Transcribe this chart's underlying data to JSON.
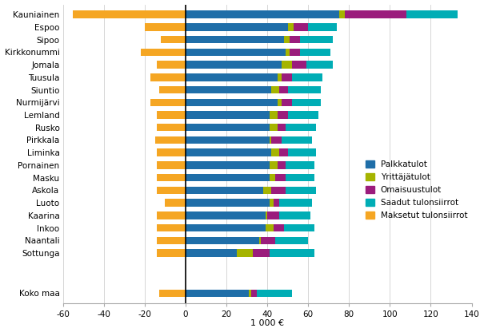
{
  "municipalities": [
    "Kauniainen",
    "Espoo",
    "Sipoo",
    "Kirkkonummi",
    "Jomala",
    "Tuusula",
    "Siuntio",
    "Nurmijärvi",
    "Lemland",
    "Rusko",
    "Pirkkala",
    "Liminka",
    "Pornainen",
    "Masku",
    "Askola",
    "Luoto",
    "Kaarina",
    "Inkoo",
    "Naantali",
    "Sottunga",
    "",
    "Koko maa"
  ],
  "palkkatulot": [
    75,
    50,
    48,
    49,
    47,
    45,
    42,
    45,
    41,
    41,
    41,
    42,
    41,
    41,
    38,
    41,
    39,
    39,
    36,
    25,
    0,
    31
  ],
  "yrittajatulot": [
    3,
    3,
    3,
    2,
    5,
    2,
    4,
    2,
    4,
    4,
    1,
    4,
    4,
    3,
    4,
    2,
    1,
    4,
    1,
    8,
    0,
    1
  ],
  "omaisuustulot": [
    30,
    7,
    5,
    5,
    7,
    5,
    4,
    5,
    5,
    4,
    5,
    4,
    4,
    5,
    7,
    3,
    6,
    5,
    7,
    8,
    0,
    3
  ],
  "saadut_tulonsiirrot": [
    25,
    14,
    16,
    15,
    13,
    15,
    16,
    14,
    15,
    15,
    15,
    14,
    14,
    14,
    15,
    16,
    15,
    15,
    16,
    22,
    0,
    17
  ],
  "maksetut_tulonsiirrot": [
    -55,
    -20,
    -12,
    -22,
    -14,
    -17,
    -13,
    -17,
    -14,
    -14,
    -15,
    -14,
    -14,
    -14,
    -14,
    -10,
    -14,
    -14,
    -14,
    -14,
    0,
    -13
  ],
  "colors": {
    "palkkatulot": "#1f6ea8",
    "yrittajatulot": "#a5b400",
    "omaisuustulot": "#9b1c7c",
    "saadut_tulonsiirrot": "#00adb5",
    "maksetut_tulonsiirrot": "#f5a623"
  },
  "xlim": [
    -60,
    140
  ],
  "xticks": [
    -60,
    -40,
    -20,
    0,
    20,
    40,
    60,
    80,
    100,
    120,
    140
  ],
  "xlabel": "1 000 €",
  "legend_labels": [
    "Palkkatulot",
    "Yrittäjätulot",
    "Omaisuustulot",
    "Saadut tulonsiirrot",
    "Maksetut tulonsiirrot"
  ]
}
